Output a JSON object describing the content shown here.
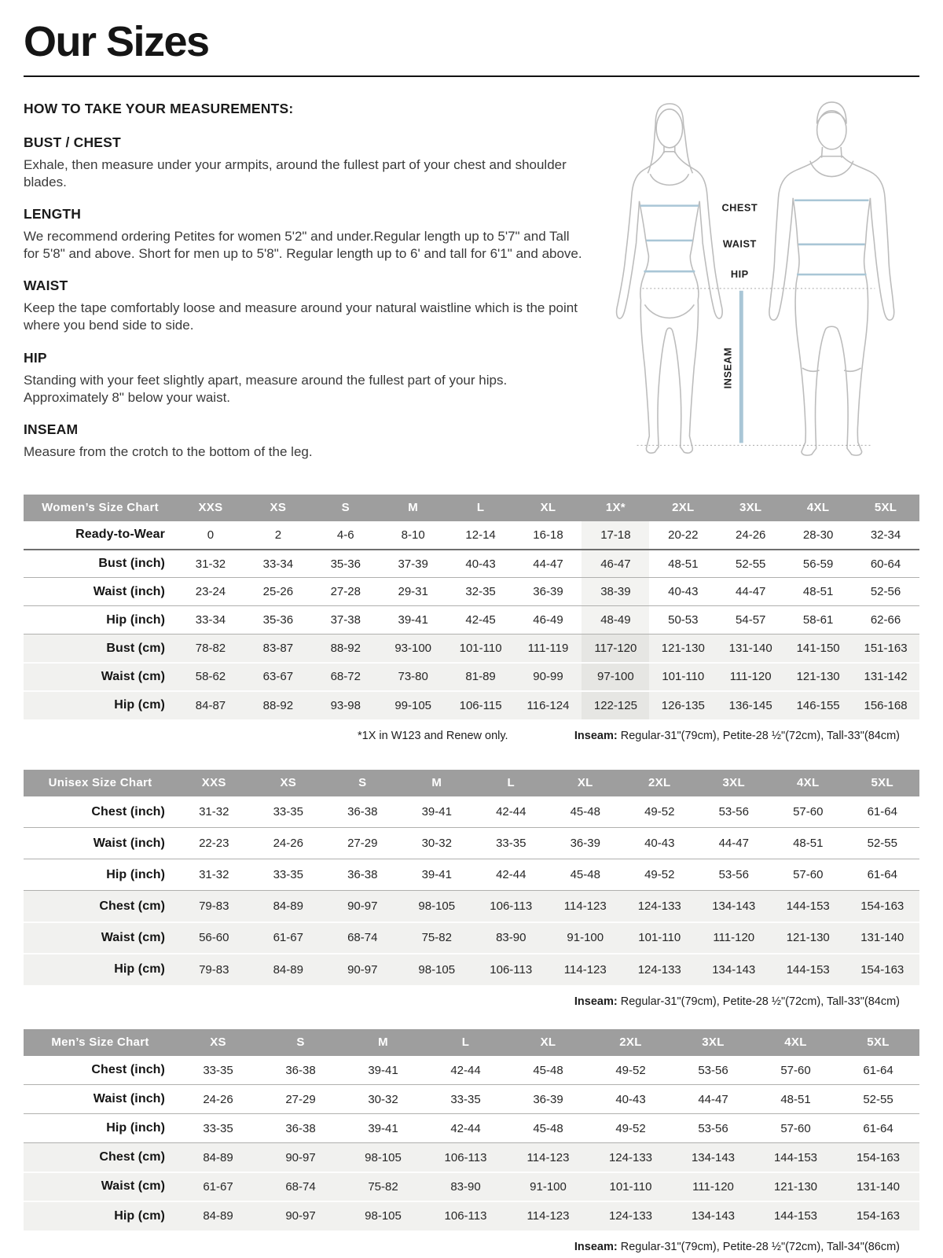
{
  "page": {
    "title": "Our Sizes"
  },
  "instructions": {
    "heading": "HOW TO TAKE YOUR MEASUREMENTS:",
    "sections": [
      {
        "title": "BUST / CHEST",
        "body": "Exhale, then measure under your armpits, around the fullest part of your chest and shoulder blades."
      },
      {
        "title": "LENGTH",
        "body": "We recommend ordering Petites for women 5'2\" and under.Regular length up to 5'7\" and Tall for 5'8\" and above. Short for men up to 5'8\". Regular length up to 6' and tall for 6'1\" and above."
      },
      {
        "title": "WAIST",
        "body": "Keep the tape comfortably loose and measure around your natural waistline which is the point where you bend side to side."
      },
      {
        "title": "HIP",
        "body": "Standing with your feet slightly apart, measure around the fullest part of your hips. Approximately 8\" below your waist."
      },
      {
        "title": "INSEAM",
        "body": "Measure from the crotch to the bottom of the leg."
      }
    ]
  },
  "diagram": {
    "labels": {
      "chest": "CHEST",
      "waist": "WAIST",
      "hip": "HIP",
      "inseam": "INSEAM"
    },
    "line_color": "#a9c6d6",
    "outline_color": "#bcbcbc"
  },
  "tables": {
    "women": {
      "title": "Women’s Size Chart",
      "columns": [
        "XXS",
        "XS",
        "S",
        "M",
        "L",
        "XL",
        "1X*",
        "2XL",
        "3XL",
        "4XL",
        "5XL"
      ],
      "highlight_col": 6,
      "rows": [
        {
          "label": "Ready-to-Wear",
          "shaded": false,
          "values": [
            "0",
            "2",
            "4-6",
            "8-10",
            "12-14",
            "16-18",
            "17-18",
            "20-22",
            "24-26",
            "28-30",
            "32-34"
          ]
        },
        {
          "label": "Bust (inch)",
          "shaded": false,
          "values": [
            "31-32",
            "33-34",
            "35-36",
            "37-39",
            "40-43",
            "44-47",
            "46-47",
            "48-51",
            "52-55",
            "56-59",
            "60-64"
          ]
        },
        {
          "label": "Waist (inch)",
          "shaded": false,
          "values": [
            "23-24",
            "25-26",
            "27-28",
            "29-31",
            "32-35",
            "36-39",
            "38-39",
            "40-43",
            "44-47",
            "48-51",
            "52-56"
          ]
        },
        {
          "label": "Hip (inch)",
          "shaded": false,
          "values": [
            "33-34",
            "35-36",
            "37-38",
            "39-41",
            "42-45",
            "46-49",
            "48-49",
            "50-53",
            "54-57",
            "58-61",
            "62-66"
          ]
        },
        {
          "label": "Bust (cm)",
          "shaded": true,
          "values": [
            "78-82",
            "83-87",
            "88-92",
            "93-100",
            "101-110",
            "111-119",
            "117-120",
            "121-130",
            "131-140",
            "141-150",
            "151-163"
          ]
        },
        {
          "label": "Waist (cm)",
          "shaded": true,
          "values": [
            "58-62",
            "63-67",
            "68-72",
            "73-80",
            "81-89",
            "90-99",
            "97-100",
            "101-110",
            "111-120",
            "121-130",
            "131-142"
          ]
        },
        {
          "label": "Hip (cm)",
          "shaded": true,
          "values": [
            "84-87",
            "88-92",
            "93-98",
            "99-105",
            "106-115",
            "116-124",
            "122-125",
            "126-135",
            "136-145",
            "146-155",
            "156-168"
          ]
        }
      ],
      "footnote_left": "*1X in W123 and Renew only.",
      "inseam_label": "Inseam:",
      "inseam_text": " Regular-31\"(79cm), Petite-28 ½\"(72cm), Tall-33\"(84cm)"
    },
    "unisex": {
      "title": "Unisex Size Chart",
      "columns": [
        "XXS",
        "XS",
        "S",
        "M",
        "L",
        "XL",
        "2XL",
        "3XL",
        "4XL",
        "5XL"
      ],
      "rows": [
        {
          "label": "Chest (inch)",
          "shaded": false,
          "values": [
            "31-32",
            "33-35",
            "36-38",
            "39-41",
            "42-44",
            "45-48",
            "49-52",
            "53-56",
            "57-60",
            "61-64"
          ]
        },
        {
          "label": "Waist (inch)",
          "shaded": false,
          "values": [
            "22-23",
            "24-26",
            "27-29",
            "30-32",
            "33-35",
            "36-39",
            "40-43",
            "44-47",
            "48-51",
            "52-55"
          ]
        },
        {
          "label": "Hip (inch)",
          "shaded": false,
          "values": [
            "31-32",
            "33-35",
            "36-38",
            "39-41",
            "42-44",
            "45-48",
            "49-52",
            "53-56",
            "57-60",
            "61-64"
          ]
        },
        {
          "label": "Chest (cm)",
          "shaded": true,
          "values": [
            "79-83",
            "84-89",
            "90-97",
            "98-105",
            "106-113",
            "114-123",
            "124-133",
            "134-143",
            "144-153",
            "154-163"
          ]
        },
        {
          "label": "Waist (cm)",
          "shaded": true,
          "values": [
            "56-60",
            "61-67",
            "68-74",
            "75-82",
            "83-90",
            "91-100",
            "101-110",
            "111-120",
            "121-130",
            "131-140"
          ]
        },
        {
          "label": "Hip (cm)",
          "shaded": true,
          "values": [
            "79-83",
            "84-89",
            "90-97",
            "98-105",
            "106-113",
            "114-123",
            "124-133",
            "134-143",
            "144-153",
            "154-163"
          ]
        }
      ],
      "inseam_label": "Inseam:",
      "inseam_text": " Regular-31\"(79cm), Petite-28 ½\"(72cm), Tall-33\"(84cm)"
    },
    "men": {
      "title": "Men’s Size Chart",
      "columns": [
        "XS",
        "S",
        "M",
        "L",
        "XL",
        "2XL",
        "3XL",
        "4XL",
        "5XL"
      ],
      "rows": [
        {
          "label": "Chest (inch)",
          "shaded": false,
          "values": [
            "33-35",
            "36-38",
            "39-41",
            "42-44",
            "45-48",
            "49-52",
            "53-56",
            "57-60",
            "61-64"
          ]
        },
        {
          "label": "Waist (inch)",
          "shaded": false,
          "values": [
            "24-26",
            "27-29",
            "30-32",
            "33-35",
            "36-39",
            "40-43",
            "44-47",
            "48-51",
            "52-55"
          ]
        },
        {
          "label": "Hip (inch)",
          "shaded": false,
          "values": [
            "33-35",
            "36-38",
            "39-41",
            "42-44",
            "45-48",
            "49-52",
            "53-56",
            "57-60",
            "61-64"
          ]
        },
        {
          "label": "Chest (cm)",
          "shaded": true,
          "values": [
            "84-89",
            "90-97",
            "98-105",
            "106-113",
            "114-123",
            "124-133",
            "134-143",
            "144-153",
            "154-163"
          ]
        },
        {
          "label": "Waist (cm)",
          "shaded": true,
          "values": [
            "61-67",
            "68-74",
            "75-82",
            "83-90",
            "91-100",
            "101-110",
            "111-120",
            "121-130",
            "131-140"
          ]
        },
        {
          "label": "Hip (cm)",
          "shaded": true,
          "values": [
            "84-89",
            "90-97",
            "98-105",
            "106-113",
            "114-123",
            "124-133",
            "134-143",
            "144-153",
            "154-163"
          ]
        }
      ],
      "inseam_label": "Inseam:",
      "inseam_text": " Regular-31\"(79cm), Petite-28 ½\"(72cm), Tall-34\"(86cm)"
    }
  }
}
